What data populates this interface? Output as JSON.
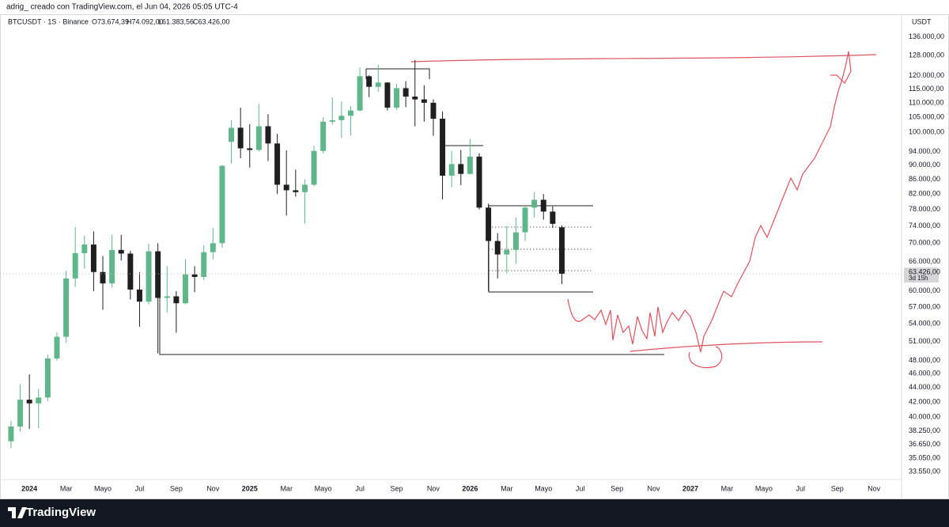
{
  "header": {
    "caption": "adrig_ creado con TradingView.com, el Jun 04, 2026 05:05 UTC-4",
    "symbol": "BTCUSDT · 1S · Binance",
    "ohlc": [
      "O73.674,39",
      "H74.092,00",
      "L61.383,56",
      "C63.426,00"
    ]
  },
  "brand": "TradingView",
  "chart_data": {
    "type": "candlestick",
    "currency": "USDT",
    "log_scale": true,
    "grid": false,
    "up_color": "#5fb68a",
    "down_color": "#1f1f1f",
    "x": [
      -1,
      -0.5,
      0,
      0.5,
      1,
      1.5,
      2,
      2.5,
      3,
      3.5,
      4,
      4.5,
      5,
      5.5,
      6,
      6.5,
      7,
      7.5,
      8,
      8.5,
      9,
      9.5,
      10,
      10.5,
      11,
      11.5,
      12,
      12.5,
      13,
      13.5,
      14,
      14.5,
      15,
      15.5,
      16,
      16.5,
      17,
      17.5,
      18,
      18.5,
      19,
      19.5,
      20,
      20.5,
      21,
      21.5,
      22,
      22.5,
      23,
      23.5,
      24,
      24.5,
      25,
      25.5,
      26,
      26.5,
      27,
      27.5,
      28,
      28.5,
      29
    ],
    "open": [
      37000,
      38800,
      42300,
      41800,
      42600,
      48300,
      51800,
      62500,
      67800,
      69700,
      63800,
      61500,
      68500,
      67700,
      60300,
      58000,
      68200,
      58700,
      59000,
      57700,
      63300,
      62800,
      68000,
      70000,
      97000,
      101500,
      95000,
      94500,
      102000,
      96500,
      84500,
      83000,
      82500,
      84500,
      94200,
      103500,
      104000,
      105500,
      107300,
      119800,
      115800,
      117400,
      108300,
      115300,
      112200,
      111200,
      110000,
      104500,
      87000,
      90300,
      87500,
      92500,
      78500,
      70500,
      67500,
      68500,
      72500,
      78500,
      80500,
      77500,
      73674.39
    ],
    "high": [
      39500,
      44500,
      45900,
      43800,
      48900,
      52500,
      64000,
      73700,
      71700,
      72700,
      67200,
      71900,
      71900,
      68300,
      63800,
      69900,
      70000,
      65000,
      60000,
      66500,
      65000,
      69500,
      73600,
      90000,
      104000,
      108300,
      102700,
      109600,
      106000,
      99500,
      94400,
      88700,
      86000,
      95800,
      105000,
      111900,
      110400,
      108900,
      123200,
      120200,
      124400,
      117500,
      116800,
      117900,
      126200,
      116400,
      111200,
      107000,
      94200,
      94500,
      97900,
      93500,
      79500,
      72300,
      74000,
      76000,
      79000,
      82500,
      82000,
      78800,
      74092
    ],
    "low": [
      36200,
      38200,
      38500,
      38600,
      42100,
      48000,
      50800,
      60800,
      64500,
      60000,
      56500,
      60700,
      66200,
      58400,
      53500,
      57500,
      49100,
      56000,
      52500,
      57500,
      59800,
      62200,
      66500,
      69000,
      90500,
      92000,
      89300,
      94000,
      91200,
      82000,
      76500,
      81300,
      74500,
      84000,
      93500,
      102500,
      98200,
      99000,
      107000,
      112000,
      114000,
      107300,
      107500,
      108500,
      102000,
      103500,
      98900,
      80600,
      83800,
      84400,
      87300,
      78000,
      60000,
      62500,
      63500,
      65500,
      70500,
      76000,
      75500,
      73500,
      61383.56
    ],
    "close": [
      38800,
      42300,
      41800,
      42600,
      48300,
      51800,
      62500,
      67800,
      69700,
      63800,
      61500,
      68500,
      67700,
      60300,
      58000,
      68200,
      58700,
      59000,
      57700,
      63300,
      62800,
      68000,
      70000,
      89800,
      101500,
      95000,
      94500,
      102000,
      96500,
      84500,
      83000,
      82500,
      84500,
      94200,
      103500,
      104000,
      105500,
      107300,
      119800,
      115800,
      117400,
      108300,
      115300,
      112200,
      111200,
      110000,
      104500,
      87000,
      90300,
      87500,
      92500,
      78500,
      70500,
      67500,
      68500,
      72500,
      78500,
      80500,
      77500,
      74500,
      63426
    ],
    "last_price": {
      "value": 63426,
      "label": "63.426,00"
    },
    "countdown": "3d 15h",
    "xlim": [
      -1.6,
      47.5
    ],
    "xticks": [
      {
        "value": 0,
        "label": "2024"
      },
      {
        "value": 2,
        "label": "Mar"
      },
      {
        "value": 4,
        "label": "Mayo"
      },
      {
        "value": 6,
        "label": "Jul"
      },
      {
        "value": 8,
        "label": "Sep"
      },
      {
        "value": 10,
        "label": "Nov"
      },
      {
        "value": 12,
        "label": "2025"
      },
      {
        "value": 14,
        "label": "Mar"
      },
      {
        "value": 16,
        "label": "Mayo"
      },
      {
        "value": 18,
        "label": "Jul"
      },
      {
        "value": 20,
        "label": "Sep"
      },
      {
        "value": 22,
        "label": "Nov"
      },
      {
        "value": 24,
        "label": "2026"
      },
      {
        "value": 26,
        "label": "Mar"
      },
      {
        "value": 28,
        "label": "Mayo"
      },
      {
        "value": 30,
        "label": "Jul"
      },
      {
        "value": 32,
        "label": "Sep"
      },
      {
        "value": 34,
        "label": "Nov"
      },
      {
        "value": 36,
        "label": "2027"
      },
      {
        "value": 38,
        "label": "Mar"
      },
      {
        "value": 40,
        "label": "Mayo"
      },
      {
        "value": 42,
        "label": "Jul"
      },
      {
        "value": 44,
        "label": "Sep"
      },
      {
        "value": 46,
        "label": "Nov"
      }
    ],
    "ylim": [
      32800,
      139000
    ],
    "yticks": [
      {
        "value": 136000,
        "label": "136.000,00"
      },
      {
        "value": 128000,
        "label": "128.000,00"
      },
      {
        "value": 120000,
        "label": "120.000,00"
      },
      {
        "value": 115000,
        "label": "115.000,00"
      },
      {
        "value": 110000,
        "label": "110.000,00"
      },
      {
        "value": 105000,
        "label": "105.000,00"
      },
      {
        "value": 100000,
        "label": "100.000,00"
      },
      {
        "value": 94000,
        "label": "94.000,00"
      },
      {
        "value": 90000,
        "label": "90.000,00"
      },
      {
        "value": 86000,
        "label": "86.000,00"
      },
      {
        "value": 82000,
        "label": "82.000,00"
      },
      {
        "value": 78000,
        "label": "78.000,00"
      },
      {
        "value": 74000,
        "label": "74.000,00"
      },
      {
        "value": 70000,
        "label": "70.000,00"
      },
      {
        "value": 66000,
        "label": "66.000,00"
      },
      {
        "value": 60000,
        "label": "60.000,00"
      },
      {
        "value": 57000,
        "label": "57.000,00"
      },
      {
        "value": 54000,
        "label": "54.000,00"
      },
      {
        "value": 51000,
        "label": "51.000,00"
      },
      {
        "value": 48000,
        "label": "48.000,00"
      },
      {
        "value": 46000,
        "label": "46.000,00"
      },
      {
        "value": 44000,
        "label": "44.000,00"
      },
      {
        "value": 42000,
        "label": "42.000,00"
      },
      {
        "value": 40000,
        "label": "40.000,00"
      },
      {
        "value": 38250,
        "label": "38.250,00"
      },
      {
        "value": 36650,
        "label": "36.650,00"
      },
      {
        "value": 35050,
        "label": "35.050,00"
      },
      {
        "value": 33550,
        "label": "33.550,00"
      }
    ]
  }
}
